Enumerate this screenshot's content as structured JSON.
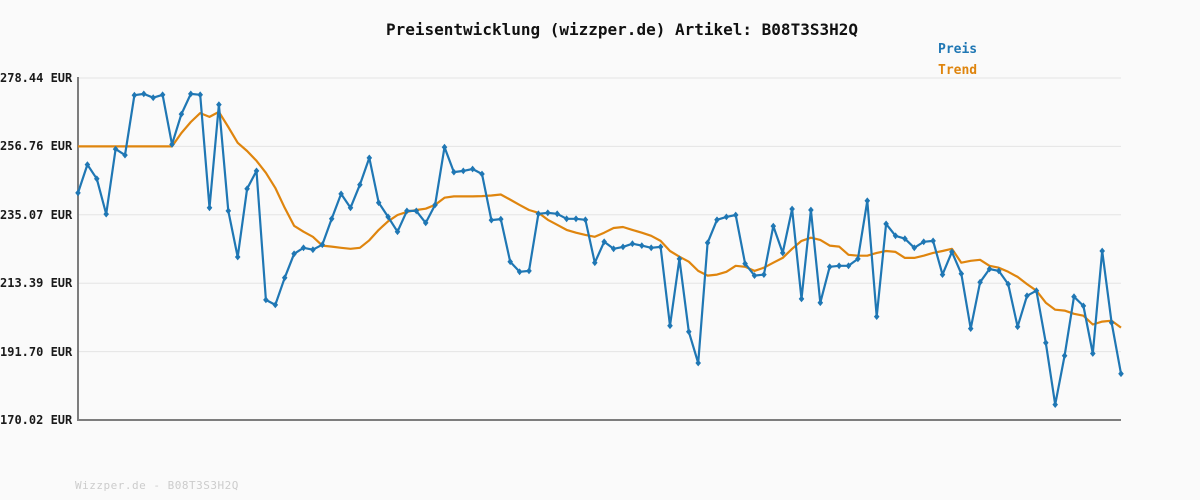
{
  "title": "Preisentwicklung (wizzper.de) Artikel: B08T3S3H2Q",
  "legend": {
    "preis": "Preis",
    "trend": "Trend"
  },
  "footer": "Wizzper.de - B08T3S3H2Q",
  "colors": {
    "preis_line": "#1f77b4",
    "trend_line": "#df850e",
    "grid": "#e4e4e4",
    "axis": "#7d7d7d",
    "background": "#fafafa",
    "title_text": "#111111",
    "footer_text": "#cccccc"
  },
  "y_axis": {
    "unit": "EUR",
    "tick_labels": [
      "278.44 EUR",
      "256.76 EUR",
      "235.07 EUR",
      "213.39 EUR",
      "191.70 EUR",
      "170.02 EUR"
    ],
    "tick_values": [
      278.44,
      256.76,
      235.07,
      213.39,
      191.7,
      170.02
    ]
  },
  "x_axis": {
    "labels_visible": false
  },
  "chart_data": {
    "type": "line",
    "title": "Preisentwicklung (wizzper.de) Artikel: B08T3S3H2Q",
    "ylabel": "EUR",
    "ylim": [
      170.02,
      278.44
    ],
    "grid": true,
    "legend_position": "top-right",
    "series": [
      {
        "name": "Preis",
        "color": "#1f77b4",
        "marker": "diamond",
        "values": [
          242.0,
          251.0,
          246.5,
          235.3,
          255.9,
          254.0,
          273.0,
          273.4,
          272.2,
          273.1,
          257.4,
          267.0,
          273.4,
          273.1,
          237.3,
          270.0,
          236.3,
          221.7,
          243.3,
          249.0,
          208.1,
          206.5,
          215.1,
          222.7,
          224.6,
          224.0,
          225.6,
          233.8,
          241.7,
          237.3,
          244.6,
          253.1,
          238.9,
          234.4,
          229.7,
          236.3,
          236.3,
          232.5,
          238.2,
          256.5,
          248.6,
          249.0,
          249.6,
          248.0,
          233.4,
          233.7,
          220.2,
          217.0,
          217.3,
          235.4,
          235.7,
          235.4,
          233.8,
          233.8,
          233.5,
          219.9,
          226.5,
          224.3,
          224.9,
          225.9,
          225.3,
          224.6,
          224.9,
          199.9,
          221.1,
          198.0,
          188.1,
          226.2,
          233.5,
          234.4,
          235.0,
          219.6,
          215.8,
          216.1,
          231.5,
          223.0,
          236.9,
          208.4,
          236.6,
          207.2,
          218.6,
          218.9,
          218.9,
          221.1,
          239.5,
          202.8,
          232.2,
          228.4,
          227.5,
          224.6,
          226.5,
          226.8,
          216.1,
          223.3,
          216.4,
          199.0,
          213.7,
          217.9,
          217.3,
          213.1,
          199.6,
          209.4,
          211.0,
          194.5,
          174.9,
          190.4,
          209.1,
          206.2,
          191.1,
          223.6,
          200.9,
          184.7
        ]
      },
      {
        "name": "Trend",
        "color": "#df850e",
        "marker": "none",
        "values": [
          256.76,
          256.76,
          256.76,
          256.76,
          256.76,
          256.76,
          256.76,
          256.76,
          256.76,
          256.76,
          256.76,
          261.0,
          264.5,
          267.3,
          266.1,
          267.7,
          262.9,
          257.9,
          255.3,
          252.2,
          248.4,
          243.6,
          237.3,
          231.6,
          229.7,
          228.1,
          225.3,
          225.0,
          224.6,
          224.3,
          224.6,
          227.0,
          230.3,
          233.0,
          235.0,
          236.0,
          236.6,
          237.0,
          238.2,
          240.5,
          240.9,
          240.9,
          240.9,
          241.0,
          241.2,
          241.5,
          239.9,
          238.2,
          236.6,
          235.7,
          233.5,
          231.9,
          230.3,
          229.4,
          228.7,
          228.1,
          229.4,
          230.9,
          231.2,
          230.3,
          229.4,
          228.4,
          226.8,
          223.6,
          221.8,
          220.2,
          217.3,
          215.8,
          216.1,
          217.0,
          218.9,
          218.6,
          217.3,
          218.3,
          219.9,
          221.4,
          224.3,
          226.8,
          227.8,
          227.1,
          225.3,
          225.0,
          222.4,
          222.1,
          222.1,
          223.0,
          223.6,
          223.3,
          221.4,
          221.4,
          222.1,
          223.0,
          223.6,
          224.3,
          219.9,
          220.5,
          220.8,
          218.9,
          218.3,
          217.0,
          215.4,
          213.1,
          211.0,
          207.2,
          205.0,
          204.7,
          203.7,
          203.1,
          200.3,
          201.2,
          201.5,
          199.3
        ]
      }
    ]
  }
}
